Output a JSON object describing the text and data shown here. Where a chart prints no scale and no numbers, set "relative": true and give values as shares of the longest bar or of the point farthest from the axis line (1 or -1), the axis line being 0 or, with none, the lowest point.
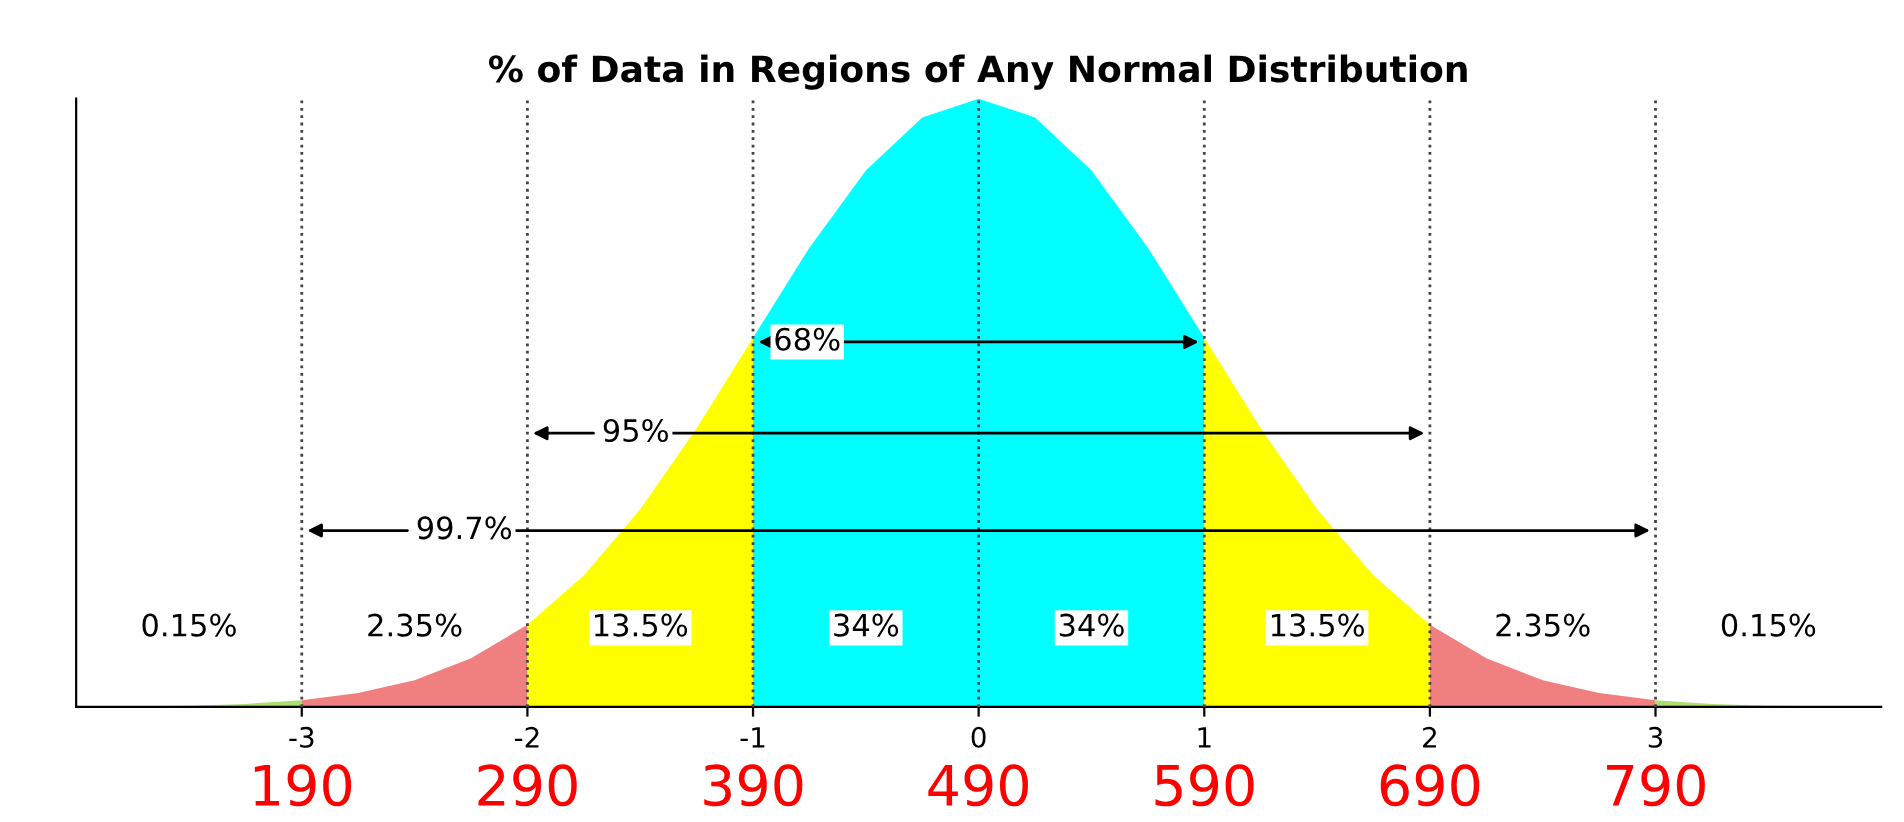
{
  "chart_data": {
    "type": "area",
    "title": "% of Data in Regions of Any Normal Distribution",
    "relative": true,
    "tick_labels": "x",
    "grid": false,
    "legend": false,
    "xlim": [
      -4,
      4
    ],
    "xticks": [
      -3,
      -2,
      -1,
      0,
      1,
      2,
      3
    ],
    "series": [
      {
        "color": "#a8e070",
        "x": [
          -4,
          -3.75,
          -3.5,
          -3.25,
          -3
        ],
        "values": [
          0.0,
          0.001,
          0.002,
          0.005,
          0.011
        ]
      },
      {
        "color": "#f08080",
        "x": [
          -3,
          -2.75,
          -2.5,
          -2.25,
          -2
        ],
        "values": [
          0.011,
          0.023,
          0.044,
          0.08,
          0.135
        ]
      },
      {
        "color": "#ffff00",
        "x": [
          -2,
          -1.75,
          -1.5,
          -1.25,
          -1
        ],
        "values": [
          0.135,
          0.216,
          0.325,
          0.458,
          0.607
        ]
      },
      {
        "color": "#00ffff",
        "x": [
          -1,
          -0.75,
          -0.5,
          -0.25,
          0,
          0.25,
          0.5,
          0.75,
          1
        ],
        "values": [
          0.607,
          0.755,
          0.882,
          0.969,
          1.0,
          0.969,
          0.882,
          0.755,
          0.607
        ]
      },
      {
        "color": "#ffff00",
        "x": [
          1,
          1.25,
          1.5,
          1.75,
          2
        ],
        "values": [
          0.607,
          0.458,
          0.325,
          0.216,
          0.135
        ]
      },
      {
        "color": "#f08080",
        "x": [
          2,
          2.25,
          2.5,
          2.75,
          3
        ],
        "values": [
          0.135,
          0.08,
          0.044,
          0.023,
          0.011
        ]
      },
      {
        "color": "#a8e070",
        "x": [
          3,
          3.25,
          3.5,
          3.75,
          4
        ],
        "values": [
          0.011,
          0.005,
          0.002,
          0.001,
          0.0
        ]
      }
    ],
    "ref_lines": [
      {
        "axis": "x",
        "value": -3,
        "line_style": "dotted"
      },
      {
        "axis": "x",
        "value": -2,
        "line_style": "dotted"
      },
      {
        "axis": "x",
        "value": -1,
        "line_style": "dotted"
      },
      {
        "axis": "x",
        "value": 0,
        "line_style": "dotted"
      },
      {
        "axis": "x",
        "value": 1,
        "line_style": "dotted"
      },
      {
        "axis": "x",
        "value": 2,
        "line_style": "dotted"
      },
      {
        "axis": "x",
        "value": 3,
        "line_style": "dotted"
      }
    ],
    "annotations": [
      "68%",
      "95%",
      "99.7%",
      "0.15%",
      "2.35%",
      "13.5%",
      "34%",
      "34%",
      "13.5%",
      "2.35%",
      "0.15%",
      "190",
      "290",
      "390",
      "490",
      "590",
      "690",
      "790"
    ]
  }
}
